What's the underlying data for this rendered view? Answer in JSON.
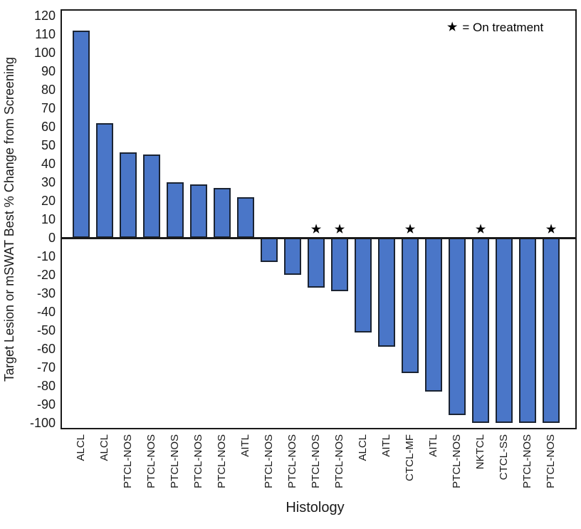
{
  "chart_data": {
    "type": "bar",
    "variant": "waterfall",
    "title": "",
    "xlabel": "Histology",
    "ylabel": "Target Lesion or mSWAT Best % Change from Screening",
    "ylim": [
      -103.5,
      123.5
    ],
    "yticks": [
      120,
      110,
      100,
      90,
      80,
      70,
      60,
      50,
      40,
      30,
      20,
      10,
      0,
      -10,
      -20,
      -30,
      -40,
      -50,
      -60,
      -70,
      -80,
      -90,
      -100
    ],
    "grid": false,
    "legend": {
      "symbol": "★",
      "text": "= On treatment",
      "position": "top-right"
    },
    "annotation_meaning": "Starred bars indicate patient on treatment",
    "bar_color": "#4a76c8",
    "bar_border_color": "#1b2433",
    "categories": [
      "ALCL",
      "ALCL",
      "PTCL-NOS",
      "PTCL-NOS",
      "PTCL-NOS",
      "PTCL-NOS",
      "PTCL-NOS",
      "AITL",
      "PTCL-NOS",
      "PTCL-NOS",
      "PTCL-NOS",
      "PTCL-NOS",
      "ALCL",
      "AITL",
      "CTCL-MF",
      "AITL",
      "PTCL-NOS",
      "NKTCL",
      "CTCL-SS",
      "PTCL-NOS",
      "PTCL-NOS"
    ],
    "series": [
      {
        "name": "Best % change from screening",
        "values": [
          112,
          62,
          46,
          45,
          30,
          29,
          27,
          22,
          -13,
          -20,
          -27,
          -29,
          -51,
          -59,
          -73,
          -83,
          -96,
          -100,
          -100,
          -100,
          -100
        ]
      }
    ],
    "on_treatment": [
      false,
      false,
      false,
      false,
      false,
      false,
      false,
      false,
      false,
      false,
      true,
      true,
      false,
      false,
      true,
      false,
      false,
      true,
      false,
      false,
      true
    ]
  }
}
